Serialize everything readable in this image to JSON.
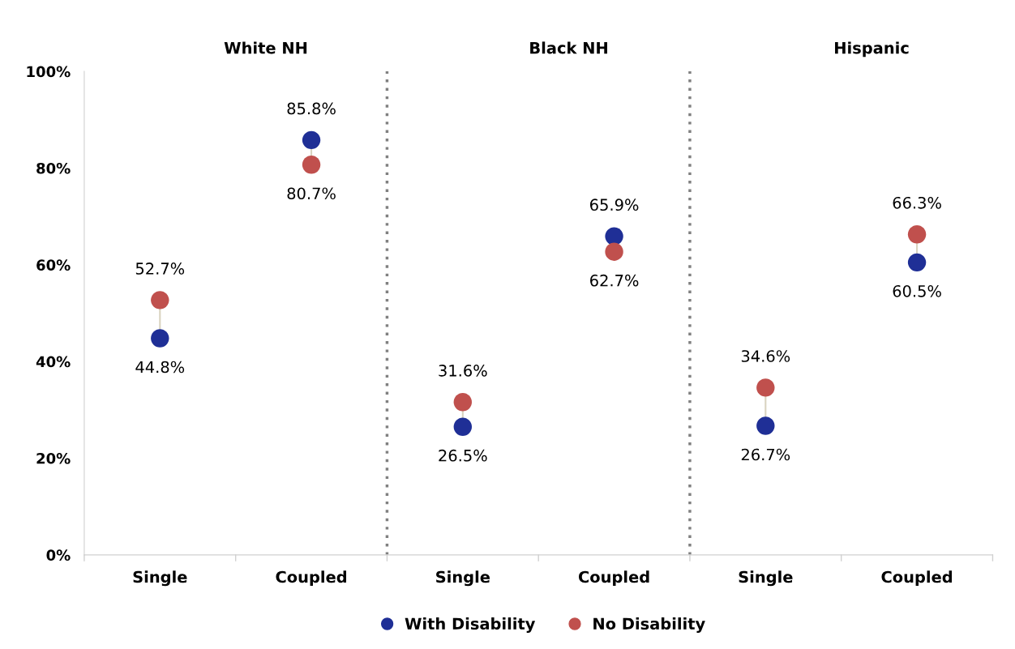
{
  "chart_data": {
    "type": "scatter",
    "categories": [
      "Single",
      "Coupled",
      "Single",
      "Coupled",
      "Single",
      "Coupled"
    ],
    "series": [
      {
        "name": "With Disability",
        "color": "#1f2f96",
        "values": [
          44.8,
          85.8,
          26.5,
          65.9,
          26.7,
          60.5
        ],
        "value_labels": [
          "44.8%",
          "85.8%",
          "26.5%",
          "65.9%",
          "26.7%",
          "60.5%"
        ]
      },
      {
        "name": "No Disability",
        "color": "#c0504d",
        "values": [
          52.7,
          80.7,
          31.6,
          62.7,
          34.6,
          66.3
        ],
        "value_labels": [
          "52.7%",
          "80.7%",
          "31.6%",
          "62.7%",
          "34.6%",
          "66.3%"
        ]
      }
    ],
    "ylim": [
      0,
      100
    ],
    "yticks": [
      {
        "value": 0,
        "label": "0%"
      },
      {
        "value": 20,
        "label": "20%"
      },
      {
        "value": 40,
        "label": "40%"
      },
      {
        "value": 60,
        "label": "60%"
      },
      {
        "value": 80,
        "label": "80%"
      },
      {
        "value": 100,
        "label": "100%"
      }
    ],
    "annotations": [
      "White NH",
      "Black NH",
      "Hispanic"
    ],
    "grid": false,
    "legend": "bottom",
    "marker": "circle"
  }
}
